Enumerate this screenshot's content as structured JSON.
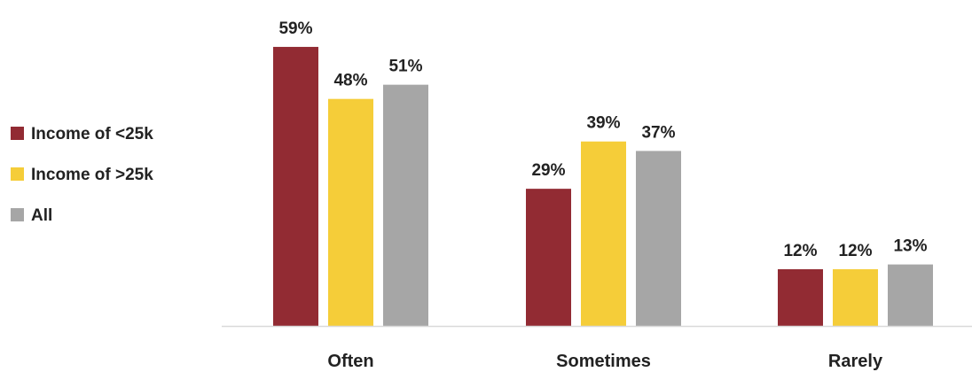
{
  "chart_data": {
    "type": "bar",
    "categories": [
      "Often",
      "Sometimes",
      "Rarely"
    ],
    "series": [
      {
        "name": "Income of <25k",
        "values": [
          59,
          29,
          12
        ],
        "color": "#922B33"
      },
      {
        "name": "Income of >25k",
        "values": [
          48,
          39,
          12
        ],
        "color": "#F5CD39"
      },
      {
        "name": "All",
        "values": [
          51,
          37,
          13
        ],
        "color": "#A6A6A6"
      }
    ],
    "value_suffix": "%",
    "ylim": [
      0,
      60
    ],
    "grid": false,
    "legend": "left",
    "axis_color": "#D9D9D9"
  }
}
